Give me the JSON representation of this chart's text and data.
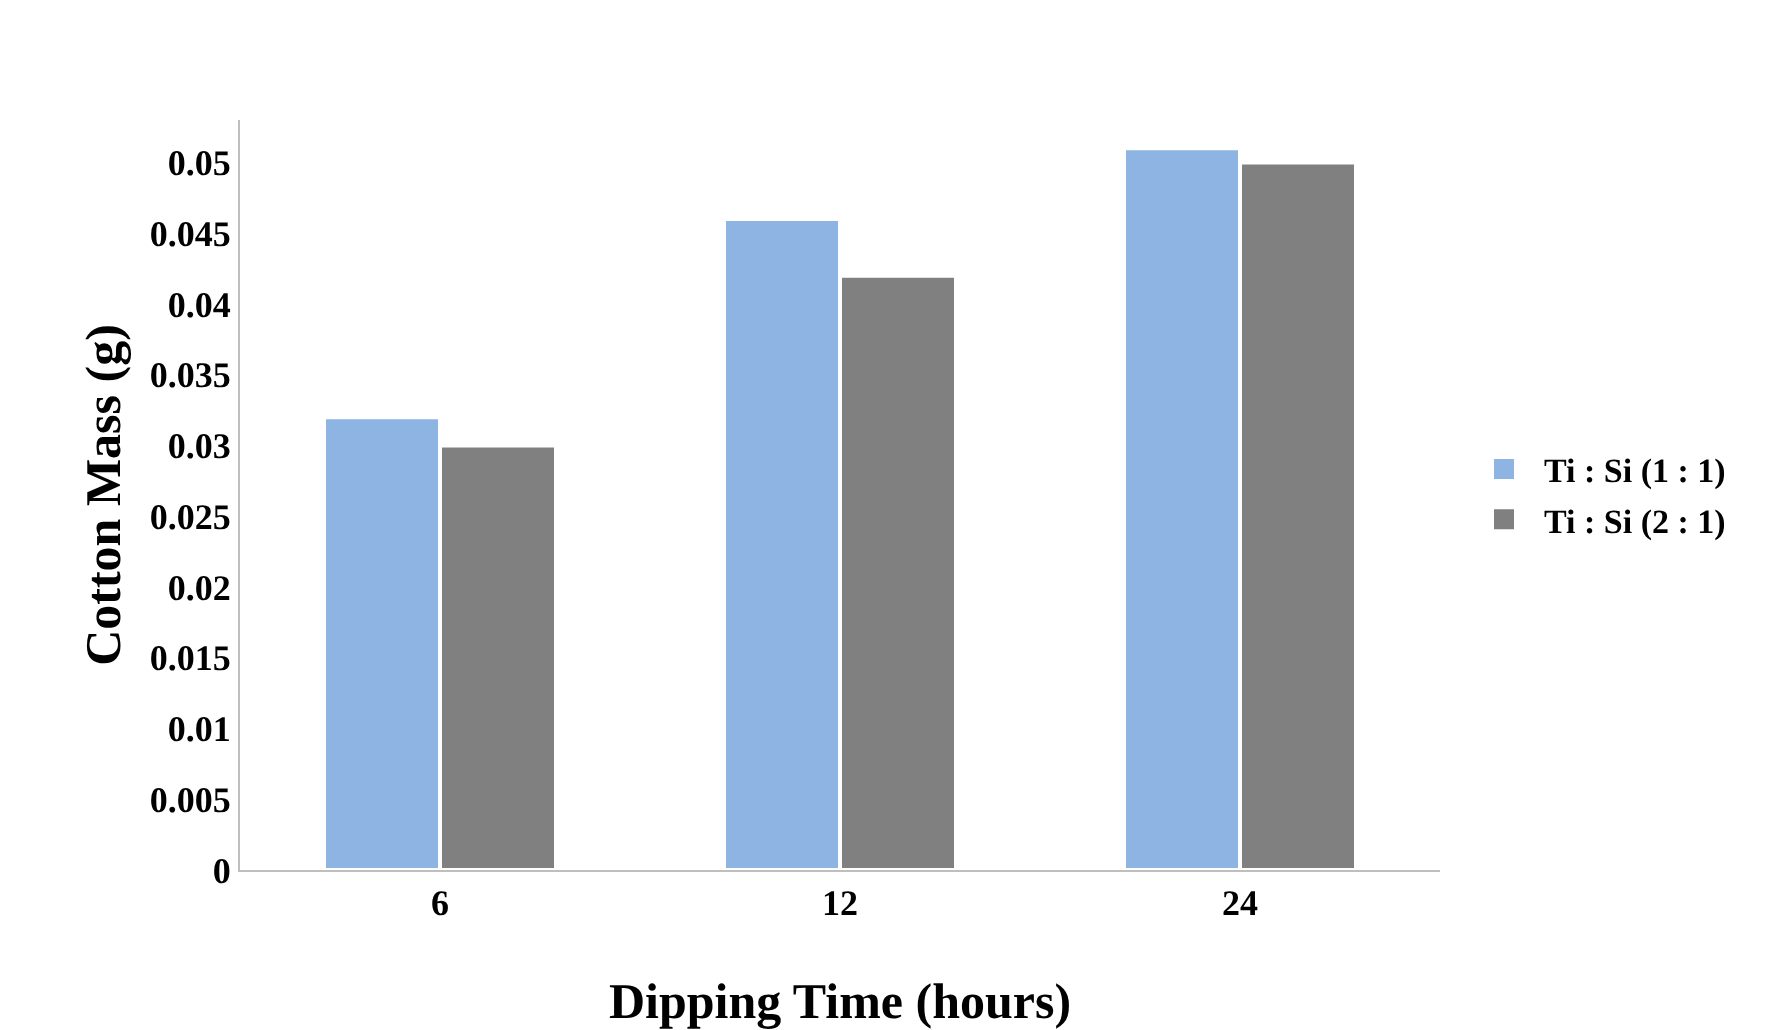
{
  "chart_data": {
    "type": "bar",
    "xlabel": "Dipping Time (hours)",
    "ylabel": "Cotton Mass (g)",
    "categories": [
      "6",
      "12",
      "24"
    ],
    "series": [
      {
        "name": "Ti : Si (1 : 1)",
        "color": "#8db4e2",
        "values": [
          0.032,
          0.046,
          0.051
        ]
      },
      {
        "name": "Ti : Si (2 : 1)",
        "color": "#808080",
        "values": [
          0.03,
          0.042,
          0.05
        ]
      }
    ],
    "ylim": [
      0,
      0.053
    ],
    "yticks": [
      0,
      0.005,
      0.01,
      0.015,
      0.02,
      0.025,
      0.03,
      0.035,
      0.04,
      0.045,
      0.05
    ],
    "grid": false,
    "legend": "right"
  }
}
